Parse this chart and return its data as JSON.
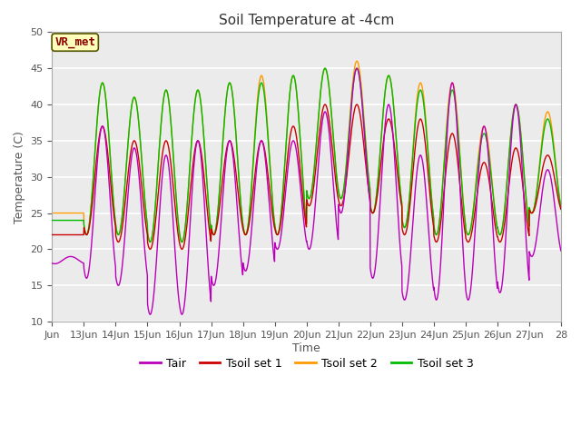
{
  "title": "Soil Temperature at -4cm",
  "xlabel": "Time",
  "ylabel": "Temperature (C)",
  "ylim": [
    10,
    50
  ],
  "xlim": [
    0,
    16
  ],
  "fig_bg_color": "#ffffff",
  "plot_bg_color": "#ebebeb",
  "grid_color": "#ffffff",
  "colors": {
    "Tair": "#bb00bb",
    "Tsoil1": "#cc0000",
    "Tsoil2": "#ff9900",
    "Tsoil3": "#00bb00"
  },
  "legend_labels": [
    "Tair",
    "Tsoil set 1",
    "Tsoil set 2",
    "Tsoil set 3"
  ],
  "annotation_text": "VR_met",
  "xtick_labels": [
    "Jun",
    "13Jun",
    "14Jun",
    "15Jun",
    "16Jun",
    "17Jun",
    "18Jun",
    "19Jun",
    "20Jun",
    "21Jun",
    "22Jun",
    "23Jun",
    "24Jun",
    "25Jun",
    "26Jun",
    "27Jun",
    "28"
  ],
  "xtick_positions": [
    0,
    1,
    2,
    3,
    4,
    5,
    6,
    7,
    8,
    9,
    10,
    11,
    12,
    13,
    14,
    15,
    16
  ],
  "ytick_positions": [
    10,
    15,
    20,
    25,
    30,
    35,
    40,
    45,
    50
  ],
  "tair_maxes": [
    19,
    37,
    34,
    33,
    35,
    35,
    35,
    35,
    39,
    45,
    40,
    33,
    43,
    37,
    40,
    31
  ],
  "tair_mins": [
    18,
    16,
    15,
    11,
    11,
    15,
    17,
    20,
    20,
    25,
    16,
    13,
    13,
    13,
    14,
    19
  ],
  "tsoil1_maxes": [
    22,
    37,
    35,
    35,
    35,
    35,
    35,
    37,
    40,
    40,
    38,
    38,
    36,
    32,
    34,
    33
  ],
  "tsoil1_mins": [
    22,
    22,
    21,
    20,
    20,
    22,
    22,
    22,
    26,
    26,
    25,
    22,
    21,
    21,
    21,
    25
  ],
  "tsoil2_maxes": [
    25,
    43,
    41,
    42,
    42,
    43,
    44,
    44,
    45,
    46,
    44,
    43,
    43,
    37,
    40,
    39
  ],
  "tsoil2_mins": [
    25,
    22,
    22,
    21,
    21,
    22,
    22,
    22,
    27,
    27,
    25,
    23,
    22,
    22,
    22,
    25
  ],
  "tsoil3_maxes": [
    24,
    43,
    41,
    42,
    42,
    43,
    43,
    44,
    45,
    45,
    44,
    42,
    42,
    36,
    40,
    38
  ],
  "tsoil3_mins": [
    24,
    22,
    22,
    21,
    21,
    22,
    22,
    22,
    27,
    27,
    25,
    23,
    22,
    22,
    22,
    25
  ]
}
